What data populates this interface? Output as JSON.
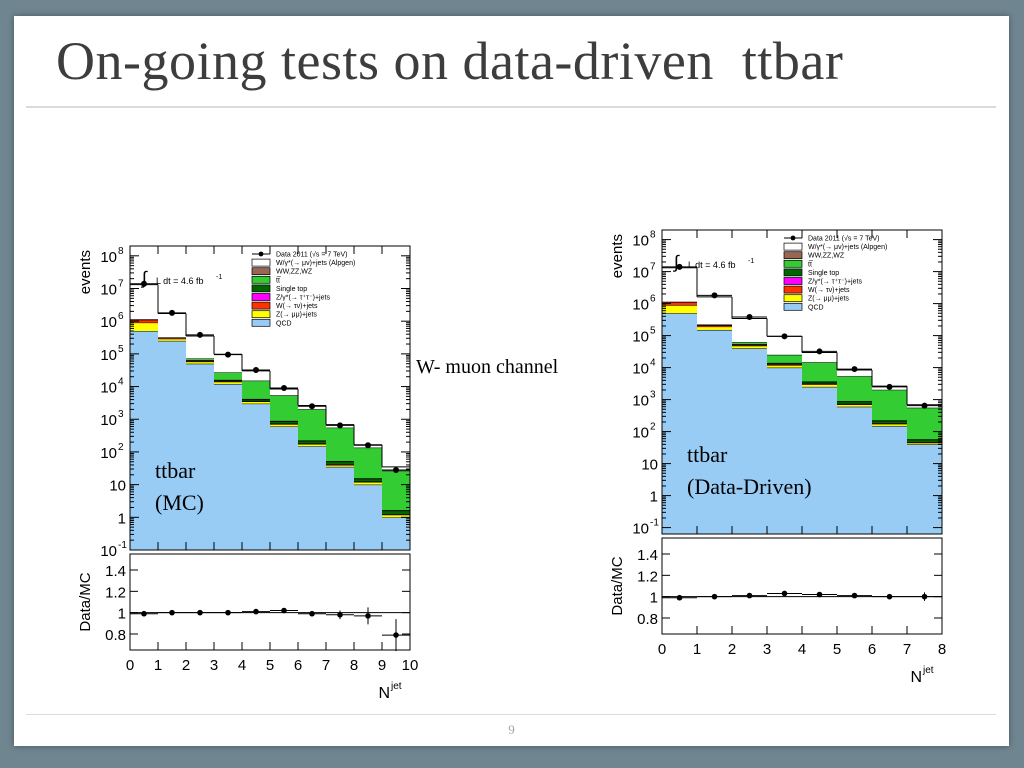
{
  "slide": {
    "title": "On-going tests on data-driven  ttbar",
    "page_number": "9",
    "center_label": "W- muon channel"
  },
  "colors": {
    "qcd": "#99ccf5",
    "zmumu": "#ffff00",
    "wtaunu": "#ff3300",
    "ztautau": "#ff00ff",
    "singletop": "#006600",
    "ttbar": "#33cc33",
    "diboson": "#996655",
    "wmunu": "#ffffff",
    "data": "#000000"
  },
  "legend": [
    {
      "key": "data",
      "label": "Data 2011 (√s = 7 TeV)"
    },
    {
      "key": "wmunu",
      "label": "W/γ*(→ μν)+jets (Alpgen)"
    },
    {
      "key": "diboson",
      "label": "WW,ZZ,WZ"
    },
    {
      "key": "ttbar",
      "label": "tt̅"
    },
    {
      "key": "singletop",
      "label": "Single top"
    },
    {
      "key": "ztautau",
      "label": "Z/γ*(→ τ⁺τ⁻)+jets"
    },
    {
      "key": "wtaunu",
      "label": "W(→ τν)+jets"
    },
    {
      "key": "zmumu",
      "label": "Z(→ μμ)+jets"
    },
    {
      "key": "qcd",
      "label": "QCD"
    }
  ],
  "chart_data": [
    {
      "type": "bar",
      "subtype": "stacked-histogram-log",
      "annotation": [
        "ttbar",
        "(MC)"
      ],
      "lumi_label": "L dt = 4.6 fb",
      "lumi_sup": "-1",
      "ylabel": "events",
      "xlabel": "N",
      "xlabel_sup": "jet",
      "ratio_ylabel": "Data/MC",
      "x_bins": [
        0,
        1,
        2,
        3,
        4,
        5,
        6,
        7,
        8,
        9,
        10
      ],
      "xlim": [
        0,
        10
      ],
      "ylim_exp": [
        -1,
        8.3
      ],
      "y_ticks": [
        {
          "v": 8,
          "label": "10",
          "sup": "8"
        },
        {
          "v": 7,
          "label": "10",
          "sup": "7"
        },
        {
          "v": 6,
          "label": "10",
          "sup": "6"
        },
        {
          "v": 5,
          "label": "10",
          "sup": "5"
        },
        {
          "v": 4,
          "label": "10",
          "sup": "4"
        },
        {
          "v": 3,
          "label": "10",
          "sup": "3"
        },
        {
          "v": 2,
          "label": "10",
          "sup": "2"
        },
        {
          "v": 1,
          "label": "10",
          "sup": ""
        },
        {
          "v": 0,
          "label": "1",
          "sup": ""
        },
        {
          "v": -1,
          "label": "10",
          "sup": "-1"
        }
      ],
      "x_tick_labels": [
        "0",
        "1",
        "2",
        "3",
        "4",
        "5",
        "6",
        "7",
        "8",
        "9",
        "10"
      ],
      "series": [
        {
          "name": "QCD",
          "color_key": "qcd",
          "values": [
            500000,
            250000,
            50000,
            12000,
            3000,
            600,
            150,
            35,
            10,
            1
          ]
        },
        {
          "name": "Z(→ μμ)+jets",
          "color_key": "zmumu",
          "values": [
            400000,
            40000,
            8000,
            2000,
            500,
            100,
            25,
            5,
            2,
            0.2
          ]
        },
        {
          "name": "W(→ τν)+jets",
          "color_key": "wtaunu",
          "values": [
            200000,
            20000,
            3000,
            700,
            150,
            35,
            8,
            2,
            0.5,
            0.05
          ]
        },
        {
          "name": "Z/γ*(→ τ⁺τ⁻)+jets",
          "color_key": "ztautau",
          "values": [
            40000,
            4000,
            600,
            150,
            35,
            8,
            2,
            0.5,
            0.1,
            0.01
          ]
        },
        {
          "name": "Single top",
          "color_key": "singletop",
          "values": [
            3000,
            5000,
            2500,
            1200,
            500,
            150,
            40,
            10,
            3,
            0.4
          ]
        },
        {
          "name": "tt̅",
          "color_key": "ttbar",
          "values": [
            1000,
            3000,
            8000,
            11000,
            11000,
            4500,
            1800,
            500,
            120,
            25
          ]
        },
        {
          "name": "WW,ZZ,WZ",
          "color_key": "diboson",
          "values": [
            1000,
            500,
            200,
            80,
            30,
            10,
            3,
            1,
            0.3,
            0.1
          ]
        },
        {
          "name": "W/γ*(→ μν)+jets",
          "color_key": "wmunu",
          "values": [
            12000000,
            1400000,
            280000,
            70000,
            15000,
            3000,
            600,
            130,
            30,
            8
          ]
        }
      ],
      "data": [
        {
          "x": 0.5,
          "y": 14000000
        },
        {
          "x": 1.5,
          "y": 1800000
        },
        {
          "x": 2.5,
          "y": 380000
        },
        {
          "x": 3.5,
          "y": 95000
        },
        {
          "x": 4.5,
          "y": 32000
        },
        {
          "x": 5.5,
          "y": 9000
        },
        {
          "x": 6.5,
          "y": 2500
        },
        {
          "x": 7.5,
          "y": 650
        },
        {
          "x": 8.5,
          "y": 160
        },
        {
          "x": 9.5,
          "y": 28
        }
      ],
      "ratio": {
        "ylim": [
          0.65,
          1.55
        ],
        "ticks": [
          "1.4",
          "1.2",
          "1",
          "0.8"
        ],
        "tick_values": [
          1.4,
          1.2,
          1.0,
          0.8
        ],
        "points": [
          {
            "x": 0.5,
            "y": 0.99,
            "err": 0
          },
          {
            "x": 1.5,
            "y": 1.0,
            "err": 0
          },
          {
            "x": 2.5,
            "y": 1.0,
            "err": 0
          },
          {
            "x": 3.5,
            "y": 1.0,
            "err": 0
          },
          {
            "x": 4.5,
            "y": 1.01,
            "err": 0.01
          },
          {
            "x": 5.5,
            "y": 1.02,
            "err": 0.01
          },
          {
            "x": 6.5,
            "y": 0.99,
            "err": 0.02
          },
          {
            "x": 7.5,
            "y": 0.98,
            "err": 0.04
          },
          {
            "x": 8.5,
            "y": 0.97,
            "err": 0.08
          },
          {
            "x": 9.5,
            "y": 0.79,
            "err": 0.15
          }
        ]
      }
    },
    {
      "type": "bar",
      "subtype": "stacked-histogram-log",
      "annotation": [
        "ttbar",
        "(Data-Driven)"
      ],
      "lumi_label": "L dt = 4.6 fb",
      "lumi_sup": "-1",
      "ylabel": "events",
      "xlabel": "N",
      "xlabel_sup": "jet",
      "ratio_ylabel": "Data/MC",
      "x_bins": [
        0,
        1,
        2,
        3,
        4,
        5,
        6,
        7,
        8
      ],
      "xlim": [
        0,
        8
      ],
      "ylim_exp": [
        -1.2,
        8.3
      ],
      "y_ticks": [
        {
          "v": 8,
          "label": "10",
          "sup": "8"
        },
        {
          "v": 7,
          "label": "10",
          "sup": "7"
        },
        {
          "v": 6,
          "label": "10",
          "sup": "6"
        },
        {
          "v": 5,
          "label": "10",
          "sup": "5"
        },
        {
          "v": 4,
          "label": "10",
          "sup": "4"
        },
        {
          "v": 3,
          "label": "10",
          "sup": "3"
        },
        {
          "v": 2,
          "label": "10",
          "sup": "2"
        },
        {
          "v": 1,
          "label": "10",
          "sup": ""
        },
        {
          "v": 0,
          "label": "1",
          "sup": ""
        },
        {
          "v": -1,
          "label": "10",
          "sup": "-1"
        }
      ],
      "x_tick_labels": [
        "0",
        "1",
        "2",
        "3",
        "4",
        "5",
        "6",
        "7",
        "8"
      ],
      "series": [
        {
          "name": "QCD",
          "color_key": "qcd",
          "values": [
            500000,
            150000,
            40000,
            10000,
            2500,
            600,
            150,
            40
          ]
        },
        {
          "name": "Z(→ μμ)+jets",
          "color_key": "zmumu",
          "values": [
            400000,
            40000,
            8000,
            2000,
            500,
            100,
            25,
            5
          ]
        },
        {
          "name": "W(→ τν)+jets",
          "color_key": "wtaunu",
          "values": [
            200000,
            20000,
            3000,
            700,
            150,
            35,
            8,
            2
          ]
        },
        {
          "name": "Z/γ*(→ τ⁺τ⁻)+jets",
          "color_key": "ztautau",
          "values": [
            40000,
            4000,
            600,
            150,
            35,
            8,
            2,
            0.5
          ]
        },
        {
          "name": "Single top",
          "color_key": "singletop",
          "values": [
            3000,
            5000,
            2500,
            1200,
            500,
            150,
            40,
            10
          ]
        },
        {
          "name": "tt̅",
          "color_key": "ttbar",
          "values": [
            1000,
            3000,
            8000,
            11000,
            11000,
            4500,
            1800,
            500
          ]
        },
        {
          "name": "WW,ZZ,WZ",
          "color_key": "diboson",
          "values": [
            1000,
            500,
            200,
            80,
            30,
            10,
            3,
            1
          ]
        },
        {
          "name": "W/γ*(→ μν)+jets",
          "color_key": "wmunu",
          "values": [
            12000000,
            1400000,
            280000,
            70000,
            15000,
            3000,
            600,
            130
          ]
        }
      ],
      "data": [
        {
          "x": 0.5,
          "y": 14000000
        },
        {
          "x": 1.5,
          "y": 1800000
        },
        {
          "x": 2.5,
          "y": 380000
        },
        {
          "x": 3.5,
          "y": 95000
        },
        {
          "x": 4.5,
          "y": 32000
        },
        {
          "x": 5.5,
          "y": 9000
        },
        {
          "x": 6.5,
          "y": 2500
        },
        {
          "x": 7.5,
          "y": 650
        }
      ],
      "ratio": {
        "ylim": [
          0.65,
          1.55
        ],
        "ticks": [
          "1.4",
          "1.2",
          "1",
          "0.8"
        ],
        "tick_values": [
          1.4,
          1.2,
          1.0,
          0.8
        ],
        "points": [
          {
            "x": 0.5,
            "y": 0.99,
            "err": 0
          },
          {
            "x": 1.5,
            "y": 1.0,
            "err": 0
          },
          {
            "x": 2.5,
            "y": 1.01,
            "err": 0
          },
          {
            "x": 3.5,
            "y": 1.03,
            "err": 0
          },
          {
            "x": 4.5,
            "y": 1.02,
            "err": 0
          },
          {
            "x": 5.5,
            "y": 1.01,
            "err": 0.01
          },
          {
            "x": 6.5,
            "y": 1.0,
            "err": 0.02
          },
          {
            "x": 7.5,
            "y": 1.0,
            "err": 0.04
          }
        ]
      }
    }
  ]
}
